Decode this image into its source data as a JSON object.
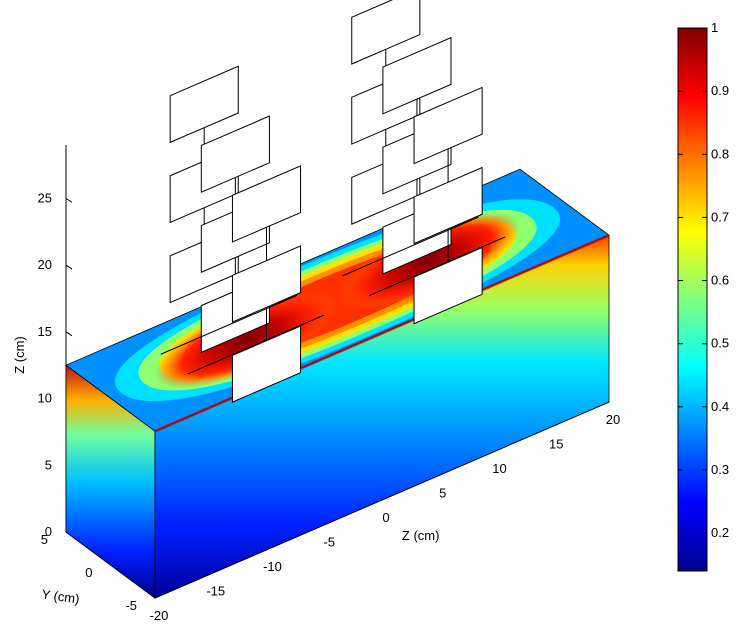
{
  "chart_data": {
    "type": "heatmap",
    "z_axis": {
      "label": "Z (cm)",
      "ticks": [
        "0",
        "5",
        "10",
        "15",
        "20",
        "25"
      ],
      "range": [
        0,
        29
      ]
    },
    "x_axis": {
      "label": "Z (cm)",
      "ticks": [
        "-20",
        "-15",
        "-10",
        "-5",
        "0",
        "5",
        "10",
        "15",
        "20"
      ],
      "range": [
        -20,
        20
      ]
    },
    "y_axis": {
      "label": "Y (cm)",
      "ticks": [
        "5",
        "0",
        "-5"
      ],
      "range": [
        -5,
        5
      ]
    },
    "colorbar": {
      "ticks": [
        "0.2",
        "0.3",
        "0.4",
        "0.5",
        "0.6",
        "0.7",
        "0.8",
        "0.9",
        "1"
      ],
      "range": [
        0.14,
        1.0
      ],
      "colormap": "jet"
    },
    "volume": {
      "x_range": [
        -20,
        20
      ],
      "y_range": [
        -5,
        5
      ],
      "z_range": [
        0,
        12.5
      ]
    },
    "hotspots": [
      {
        "x": -8,
        "y": 0,
        "value": 1.0
      },
      {
        "x": 8,
        "y": 0,
        "value": 1.0
      }
    ],
    "coil_arrays": 2,
    "colors": {
      "low": "#00008f",
      "mid": "#7fff7f",
      "high": "#800000",
      "background": "#ffffff"
    }
  }
}
